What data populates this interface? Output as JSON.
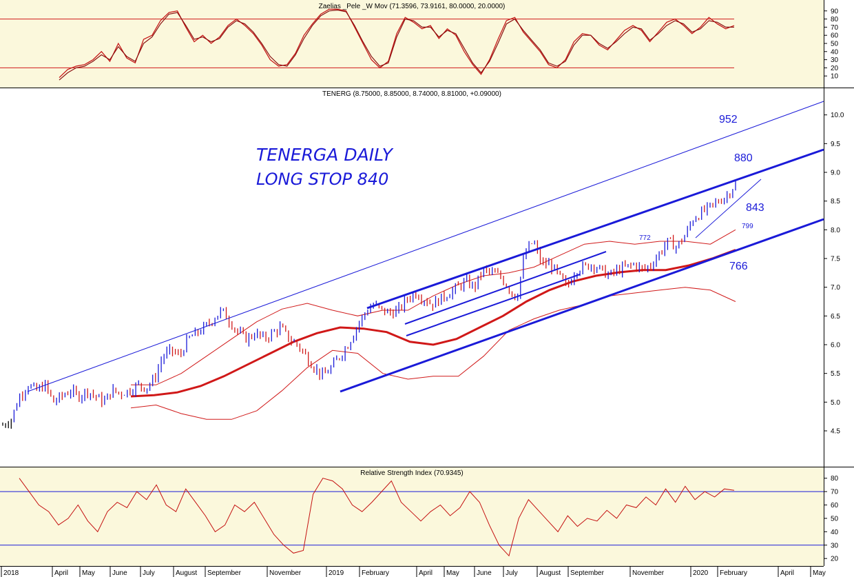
{
  "chart_data": [
    {
      "type": "line",
      "panel": "stochastic",
      "title": "Zaelias _Pele _W Mov (71.3596, 73.9161, 80.0000, 20.0000)",
      "y_ticks": [
        "90",
        "80",
        "70",
        "60",
        "50",
        "40",
        "30",
        "20",
        "10"
      ],
      "ylim": [
        0,
        100
      ],
      "reference_lines": [
        80,
        20
      ],
      "series": [
        {
          "values": [
            8,
            18,
            22,
            24,
            30,
            40,
            28,
            50,
            32,
            26,
            55,
            60,
            78,
            88,
            90,
            70,
            52,
            60,
            50,
            58,
            72,
            80,
            72,
            62,
            48,
            30,
            22,
            24,
            38,
            60,
            74,
            86,
            92,
            92,
            90,
            70,
            50,
            30,
            20,
            28,
            62,
            82,
            76,
            68,
            72,
            56,
            68,
            60,
            40,
            24,
            12,
            30,
            55,
            78,
            82,
            64,
            52,
            40,
            24,
            20,
            30,
            52,
            62,
            60,
            48,
            42,
            54,
            66,
            72,
            66,
            52,
            64,
            76,
            80,
            72,
            62,
            70,
            82,
            74,
            68,
            72
          ]
        },
        {
          "values": [
            5,
            14,
            20,
            22,
            28,
            36,
            30,
            46,
            34,
            28,
            50,
            58,
            74,
            86,
            88,
            72,
            55,
            58,
            52,
            56,
            70,
            78,
            74,
            64,
            50,
            34,
            24,
            22,
            36,
            56,
            72,
            84,
            90,
            91,
            89,
            72,
            52,
            34,
            22,
            26,
            58,
            80,
            78,
            70,
            70,
            58,
            66,
            62,
            44,
            26,
            14,
            28,
            50,
            74,
            80,
            66,
            54,
            42,
            26,
            22,
            28,
            48,
            60,
            60,
            50,
            44,
            52,
            62,
            70,
            68,
            54,
            62,
            72,
            78,
            74,
            64,
            68,
            78,
            76,
            70,
            70
          ]
        }
      ]
    },
    {
      "type": "line",
      "panel": "price",
      "title": "TENERG (8.75000, 8.85000, 8.74000, 8.81000, +0.09000)",
      "y_ticks": [
        "10.0",
        "9.5",
        "9.0",
        "8.5",
        "8.0",
        "7.5",
        "7.0",
        "6.5",
        "6.0",
        "5.5",
        "5.0",
        "4.5"
      ],
      "ylim": [
        4.2,
        10.2
      ],
      "annotations": [
        {
          "text": "952"
        },
        {
          "text": "880"
        },
        {
          "text": "843"
        },
        {
          "text": "799"
        },
        {
          "text": "772"
        },
        {
          "text": "766"
        }
      ],
      "notes": [
        "TENERGA DAILY",
        "LONG STOP 840"
      ],
      "series": [
        {
          "role": "close",
          "values": [
            4.6,
            4.7,
            5.1,
            5.3,
            5.2,
            5.3,
            5.0,
            5.1,
            5.2,
            5.1,
            5.2,
            5.1,
            5.0,
            5.2,
            5.15,
            5.2,
            5.3,
            5.25,
            5.4,
            5.8,
            5.9,
            5.8,
            6.1,
            6.2,
            6.3,
            6.45,
            6.6,
            6.4,
            6.2,
            6.1,
            6.2,
            6.1,
            6.2,
            6.3,
            6.1,
            6.0,
            5.8,
            5.6,
            5.45,
            5.6,
            5.8,
            6.0,
            6.3,
            6.55,
            6.7,
            6.6,
            6.55,
            6.6,
            6.8,
            6.9,
            6.8,
            6.7,
            6.8,
            6.9,
            7.0,
            7.1,
            7.0,
            7.3,
            7.25,
            7.2,
            7.0,
            6.8,
            7.6,
            7.8,
            7.4,
            7.4,
            7.2,
            7.0,
            7.3,
            7.35,
            7.4,
            7.3,
            7.2,
            7.3,
            7.35,
            7.4,
            7.3,
            7.4,
            7.6,
            7.8,
            7.7,
            7.9,
            8.2,
            8.3,
            8.4,
            8.5,
            8.6,
            8.81
          ]
        },
        {
          "role": "moving average",
          "values": [
            5.1,
            5.12,
            5.17,
            5.28,
            5.45,
            5.65,
            5.85,
            6.05,
            6.2,
            6.3,
            6.28,
            6.22,
            6.05,
            6.0,
            6.1,
            6.3,
            6.5,
            6.75,
            6.95,
            7.1,
            7.2,
            7.26,
            7.3,
            7.3,
            7.38,
            7.5,
            7.65
          ]
        },
        {
          "role": "upper band",
          "values": [
            5.3,
            5.3,
            5.5,
            5.8,
            6.1,
            6.4,
            6.62,
            6.72,
            6.6,
            6.5,
            6.6,
            6.6,
            6.85,
            7.05,
            7.2,
            7.25,
            7.35,
            7.55,
            7.75,
            7.8,
            7.75,
            7.8,
            7.8,
            7.75,
            8.0
          ]
        },
        {
          "role": "lower band",
          "values": [
            4.9,
            4.95,
            4.8,
            4.7,
            4.7,
            4.85,
            5.2,
            5.6,
            5.9,
            5.85,
            5.5,
            5.4,
            5.45,
            5.45,
            5.8,
            6.25,
            6.45,
            6.6,
            6.7,
            6.85,
            6.9,
            6.95,
            7.0,
            6.95,
            6.75
          ]
        }
      ]
    },
    {
      "type": "line",
      "panel": "rsi",
      "title": "Relative Strength Index (70.9345)",
      "y_ticks": [
        "80",
        "70",
        "60",
        "50",
        "40",
        "30",
        "20"
      ],
      "ylim": [
        17,
        85
      ],
      "reference_lines": [
        70,
        30
      ],
      "series": [
        {
          "values": [
            80,
            70,
            60,
            55,
            45,
            50,
            60,
            48,
            40,
            55,
            62,
            58,
            70,
            64,
            75,
            60,
            55,
            72,
            62,
            52,
            40,
            45,
            60,
            55,
            62,
            50,
            38,
            30,
            24,
            26,
            68,
            80,
            78,
            72,
            60,
            55,
            62,
            70,
            78,
            62,
            55,
            48,
            55,
            60,
            52,
            58,
            70,
            62,
            45,
            30,
            22,
            50,
            64,
            56,
            48,
            40,
            52,
            44,
            50,
            48,
            56,
            50,
            60,
            58,
            66,
            60,
            72,
            62,
            74,
            64,
            70,
            66,
            72,
            71
          ]
        }
      ]
    }
  ],
  "x_axis": {
    "labels": [
      "2018",
      "April",
      "May",
      "June",
      "July",
      "August",
      "September",
      "November",
      "2019",
      "February",
      "April",
      "May",
      "June",
      "July",
      "August",
      "September",
      "November",
      "2020",
      "February",
      "April",
      "May"
    ]
  }
}
